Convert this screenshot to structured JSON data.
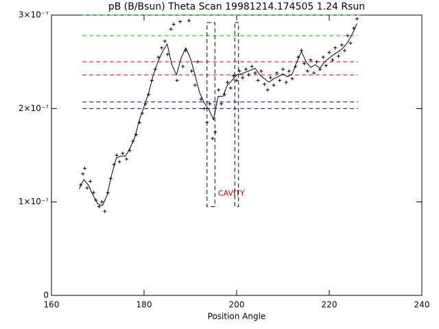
{
  "chart_data": {
    "type": "scatter",
    "title": "pB (B/Bsun) Theta Scan 19981214.174505 1.24 Rsun",
    "x_label": "Position Angle",
    "xlim": [
      160,
      240
    ],
    "xticks": [
      160,
      180,
      200,
      220,
      240
    ],
    "ylim": [
      0,
      3e-07
    ],
    "yticks": [
      0,
      {
        "value": 1e-07,
        "label": "1×10⁻⁷"
      },
      {
        "value": 2e-07,
        "label": "2×10⁻⁷"
      },
      {
        "value": 3e-07,
        "label": "3×10⁻⁷"
      }
    ],
    "color": "#000000",
    "series": [
      {
        "kind": "points",
        "x": [
          166.3,
          166.8,
          167.2,
          167.7,
          168.4,
          169.1,
          169.6,
          170.3,
          170.9,
          171.5,
          172.2,
          172.8,
          173.5,
          174.1,
          174.7,
          175.4,
          176.2,
          176.9,
          177.6,
          178.3,
          179.0,
          179.6,
          180.3,
          181.0,
          181.7,
          182.4,
          183.1,
          183.8,
          184.5,
          185.1,
          185.8,
          186.4,
          187.1,
          187.8,
          188.4,
          189.0,
          189.7,
          190.3,
          191.0,
          191.6,
          192.3,
          193.0,
          193.6,
          194.2,
          194.8,
          195.4,
          196.1,
          196.7,
          197.4,
          198.0,
          198.7,
          199.3,
          200.0,
          200.6,
          201.3,
          202.0,
          202.6,
          203.3,
          204.0,
          204.6,
          205.3,
          206.0,
          206.7,
          207.3,
          208.0,
          208.7,
          209.3,
          210.0,
          210.7,
          211.3,
          212.0,
          212.7,
          213.3,
          214.0,
          214.6,
          215.3,
          216.0,
          216.7,
          217.3,
          218.0,
          218.7,
          219.3,
          220.0,
          220.7,
          221.3,
          222.0,
          222.7,
          223.3,
          224.0,
          224.6,
          225.3,
          226.0
        ],
        "values": [
          1.18e-07,
          1.3e-07,
          1.36e-07,
          1.15e-07,
          1.22e-07,
          1.1e-07,
          1.02e-07,
          9.5e-08,
          1e-07,
          9e-08,
          1.1e-07,
          1.25e-07,
          1.4e-07,
          1.5e-07,
          1.43e-07,
          1.52e-07,
          1.46e-07,
          1.55e-07,
          1.65e-07,
          1.72e-07,
          1.85e-07,
          1.95e-07,
          2.05e-07,
          2.15e-07,
          2.3e-07,
          2.42e-07,
          2.55e-07,
          2.65e-07,
          2.72e-07,
          2.58e-07,
          2.85e-07,
          2.9e-07,
          2.3e-07,
          2.93e-07,
          2.45e-07,
          2.62e-07,
          2.94e-07,
          2.4e-07,
          2.25e-07,
          2.5e-07,
          2.1e-07,
          2e-07,
          1.85e-07,
          2.05e-07,
          1.68e-07,
          1.75e-07,
          2.2e-07,
          2.05e-07,
          2.15e-07,
          2.28e-07,
          2.22e-07,
          2.35e-07,
          2.3e-07,
          2.4e-07,
          2.33e-07,
          2.42e-07,
          2.36e-07,
          2.45e-07,
          2.38e-07,
          2.3e-07,
          2.4e-07,
          2.26e-07,
          2.2e-07,
          2.33e-07,
          2.25e-07,
          2.38e-07,
          2.3e-07,
          2.42e-07,
          2.28e-07,
          2.4e-07,
          2.32e-07,
          2.45e-07,
          2.55e-07,
          2.62e-07,
          2.48e-07,
          2.4e-07,
          2.52e-07,
          2.38e-07,
          2.5e-07,
          2.42e-07,
          2.55e-07,
          2.46e-07,
          2.6e-07,
          2.52e-07,
          2.65e-07,
          2.56e-07,
          2.68e-07,
          2.62e-07,
          2.78e-07,
          2.7e-07,
          2.86e-07,
          2.96e-07
        ]
      },
      {
        "kind": "line",
        "x": [
          166,
          167,
          168,
          169,
          170,
          171,
          172,
          173,
          174,
          175,
          176,
          177,
          178,
          179,
          180,
          181,
          182,
          183,
          184,
          185,
          186,
          187,
          188,
          189,
          190,
          191,
          192,
          193,
          194,
          195,
          196,
          197,
          198,
          199,
          200,
          201,
          202,
          203,
          204,
          205,
          206,
          207,
          208,
          209,
          210,
          211,
          212,
          213,
          214,
          215,
          216,
          217,
          218,
          219,
          220,
          221,
          222,
          223,
          224,
          225,
          226
        ],
        "values": [
          1.14e-07,
          1.24e-07,
          1.18e-07,
          1.07e-07,
          9.8e-08,
          9.6e-08,
          1.07e-07,
          1.29e-07,
          1.47e-07,
          1.49e-07,
          1.49e-07,
          1.58e-07,
          1.69e-07,
          1.88e-07,
          2.02e-07,
          2.17e-07,
          2.36e-07,
          2.5e-07,
          2.61e-07,
          2.69e-07,
          2.47e-07,
          2.36e-07,
          2.54e-07,
          2.65e-07,
          2.54e-07,
          2.36e-07,
          2.17e-07,
          2.06e-07,
          1.99e-07,
          1.88e-07,
          2.13e-07,
          2.13e-07,
          2.25e-07,
          2.3e-07,
          2.36e-07,
          2.37e-07,
          2.39e-07,
          2.41e-07,
          2.43e-07,
          2.36e-07,
          2.32e-07,
          2.28e-07,
          2.32e-07,
          2.34e-07,
          2.37e-07,
          2.34e-07,
          2.37e-07,
          2.5e-07,
          2.61e-07,
          2.5e-07,
          2.44e-07,
          2.47e-07,
          2.43e-07,
          2.5e-07,
          2.54e-07,
          2.58e-07,
          2.61e-07,
          2.65e-07,
          2.71e-07,
          2.8e-07,
          2.91e-07
        ]
      }
    ],
    "reference_lines": [
      {
        "value": 3e-07,
        "color": "#00c000",
        "xlim": [
          166.7,
          226.6
        ]
      },
      {
        "value": 2.78e-07,
        "color": "#00c000",
        "xlim": [
          166.7,
          226.2
        ]
      },
      {
        "value": 2.5e-07,
        "color": "#d00000",
        "xlim": [
          166.7,
          226.2
        ]
      },
      {
        "value": 2.36e-07,
        "color": "#d00000",
        "xlim": [
          166.7,
          226.2
        ]
      },
      {
        "value": 2.07e-07,
        "color": "#000080",
        "xlim": [
          166.7,
          226.2
        ]
      },
      {
        "value": 2e-07,
        "color": "#000080",
        "xlim": [
          166.7,
          226.2
        ]
      }
    ],
    "regions": [
      {
        "xlim": [
          193.6,
          195.3
        ],
        "ylim": [
          9.5e-08,
          2.92e-07
        ]
      },
      {
        "xlim": [
          199.6,
          200.4
        ],
        "ylim": [
          9.5e-08,
          2.92e-07
        ]
      }
    ],
    "annotation": {
      "text": "CAVITY",
      "x": 196,
      "y": 1.09e-07,
      "color": "#c00000"
    }
  }
}
